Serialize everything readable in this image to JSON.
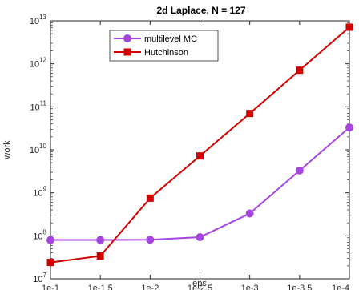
{
  "chart_data": {
    "type": "line",
    "title": "2d Laplace, N = 127",
    "xlabel": "eps",
    "ylabel": "work",
    "categories": [
      "1e-1",
      "1e-1.5",
      "1e-2",
      "1e-2.5",
      "1e-3",
      "1e-3.5",
      "1e-4"
    ],
    "y_scale": "log",
    "ylim": [
      10000000.0,
      10000000000000.0
    ],
    "y_ticks": [
      {
        "base": "10",
        "exp": "7"
      },
      {
        "base": "10",
        "exp": "8"
      },
      {
        "base": "10",
        "exp": "9"
      },
      {
        "base": "10",
        "exp": "10"
      },
      {
        "base": "10",
        "exp": "11"
      },
      {
        "base": "10",
        "exp": "12"
      },
      {
        "base": "10",
        "exp": "13"
      }
    ],
    "grid": false,
    "legend_position": "top-left",
    "series": [
      {
        "name": "multilevel MC",
        "color": "#a745e3",
        "marker": "circle",
        "values": [
          80000000.0,
          80000000.0,
          81000000.0,
          93000000.0,
          330000000.0,
          3300000000.0,
          33000000000.0
        ]
      },
      {
        "name": "Hutchinson",
        "color": "#d40000",
        "marker": "square",
        "values": [
          24000000.0,
          34000000.0,
          750000000.0,
          7200000000.0,
          70000000000.0,
          710000000000.0,
          7100000000000.0
        ]
      }
    ]
  }
}
